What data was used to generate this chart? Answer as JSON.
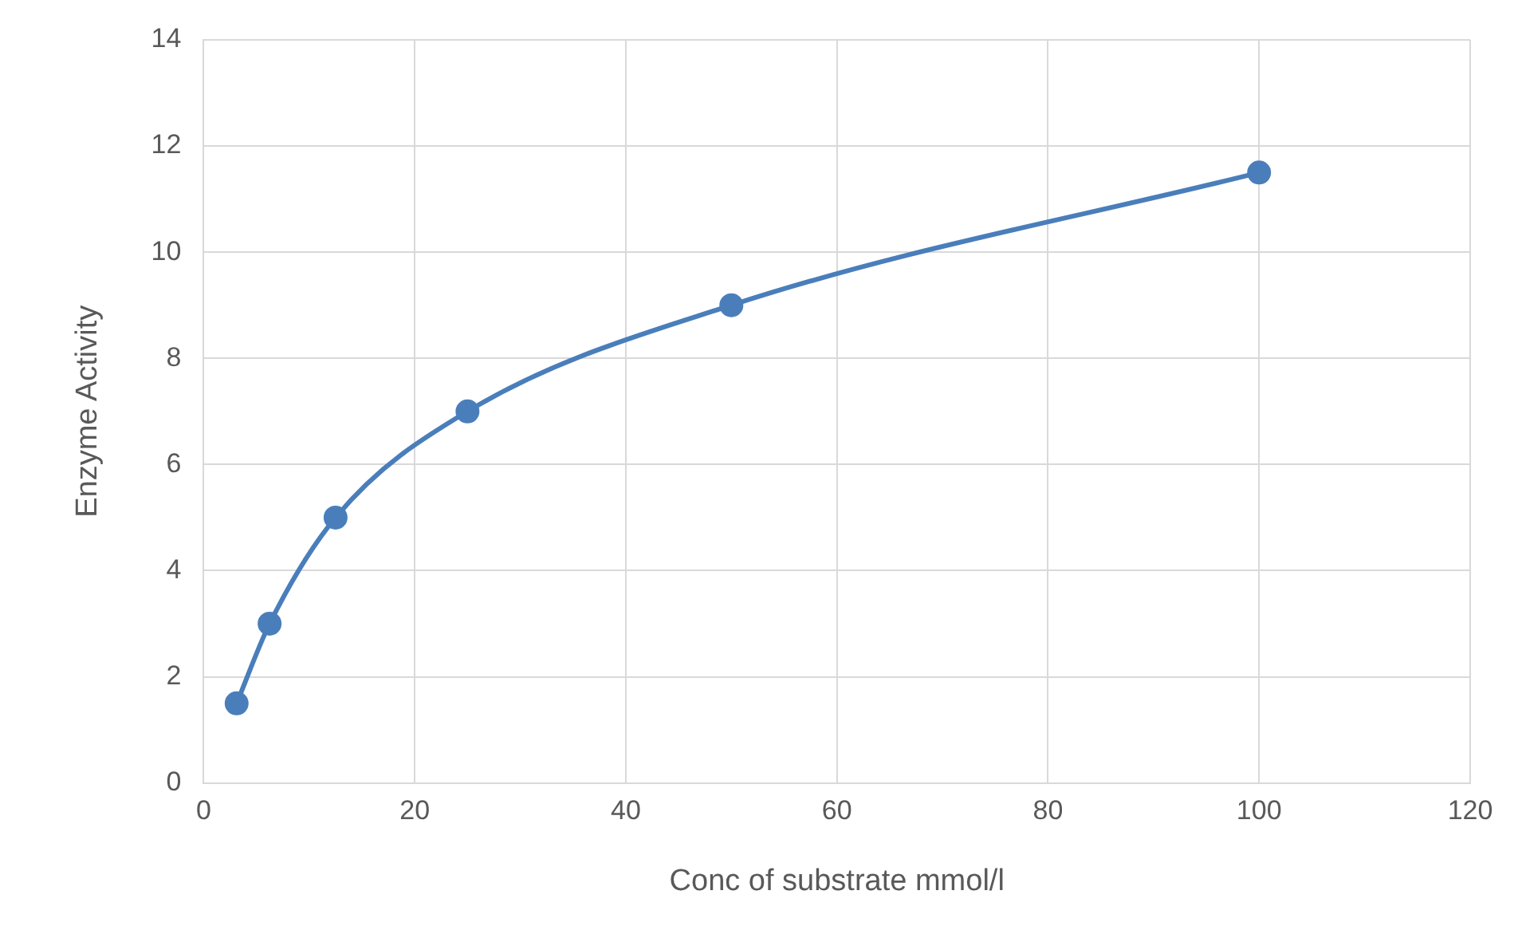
{
  "chart_data": {
    "type": "scatter",
    "xlabel": "Conc of substrate mmol/l",
    "ylabel": "Enzyme Activity",
    "x": [
      3.125,
      6.25,
      12.5,
      25,
      50,
      100
    ],
    "series": [
      {
        "type": "line",
        "color": "#4a7ebb",
        "values": [
          1.5,
          3,
          5,
          7,
          9,
          11.5
        ]
      }
    ],
    "xlim": [
      0,
      120
    ],
    "xticks": [
      0,
      20,
      40,
      60,
      80,
      100,
      120
    ],
    "ylim": [
      0,
      14
    ],
    "yticks": [
      0,
      2,
      4,
      6,
      8,
      10,
      12,
      14
    ],
    "grid": true,
    "legend": false,
    "marker": "circle",
    "line_style": "solid"
  }
}
